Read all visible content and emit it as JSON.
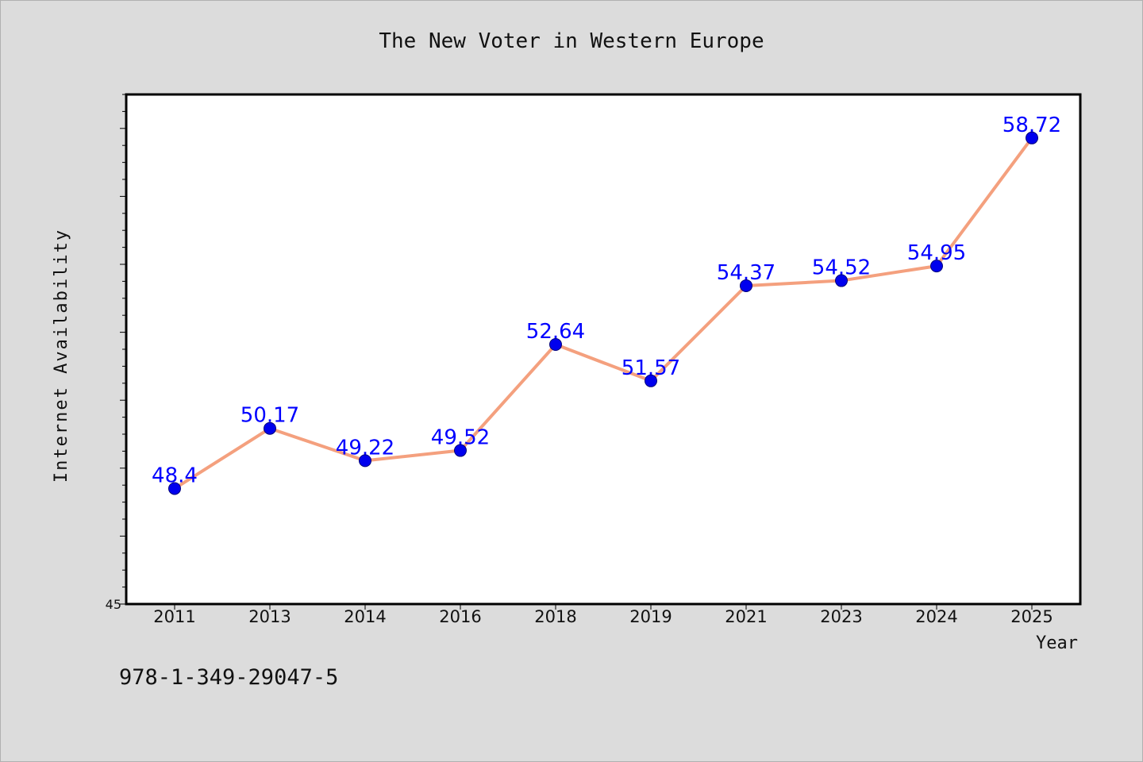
{
  "footer_text": "978-1-349-29047-5",
  "colors": {
    "background": "#dcdcdc",
    "plot_background": "#ffffff",
    "line": "#f4a07e",
    "marker": "#0000ee",
    "data_label": "#0000ff",
    "text": "#111111"
  },
  "chart_data": {
    "type": "line",
    "title": "The New Voter in Western Europe",
    "xlabel": "Year",
    "ylabel": "Internet Availability",
    "categories": [
      "2011",
      "2013",
      "2014",
      "2016",
      "2018",
      "2019",
      "2021",
      "2023",
      "2024",
      "2025"
    ],
    "series": [
      {
        "values": [
          48.4,
          50.17,
          49.22,
          49.52,
          52.64,
          51.57,
          54.37,
          54.52,
          54.95,
          58.72
        ]
      }
    ],
    "data_labels": [
      "48.4",
      "50.17",
      "49.22",
      "49.52",
      "52.64",
      "51.57",
      "54.37",
      "54.52",
      "54.95",
      "58.72"
    ],
    "ylim": [
      45,
      60
    ],
    "y_tick_labels": [
      "45"
    ],
    "grid": false,
    "legend": "none"
  }
}
